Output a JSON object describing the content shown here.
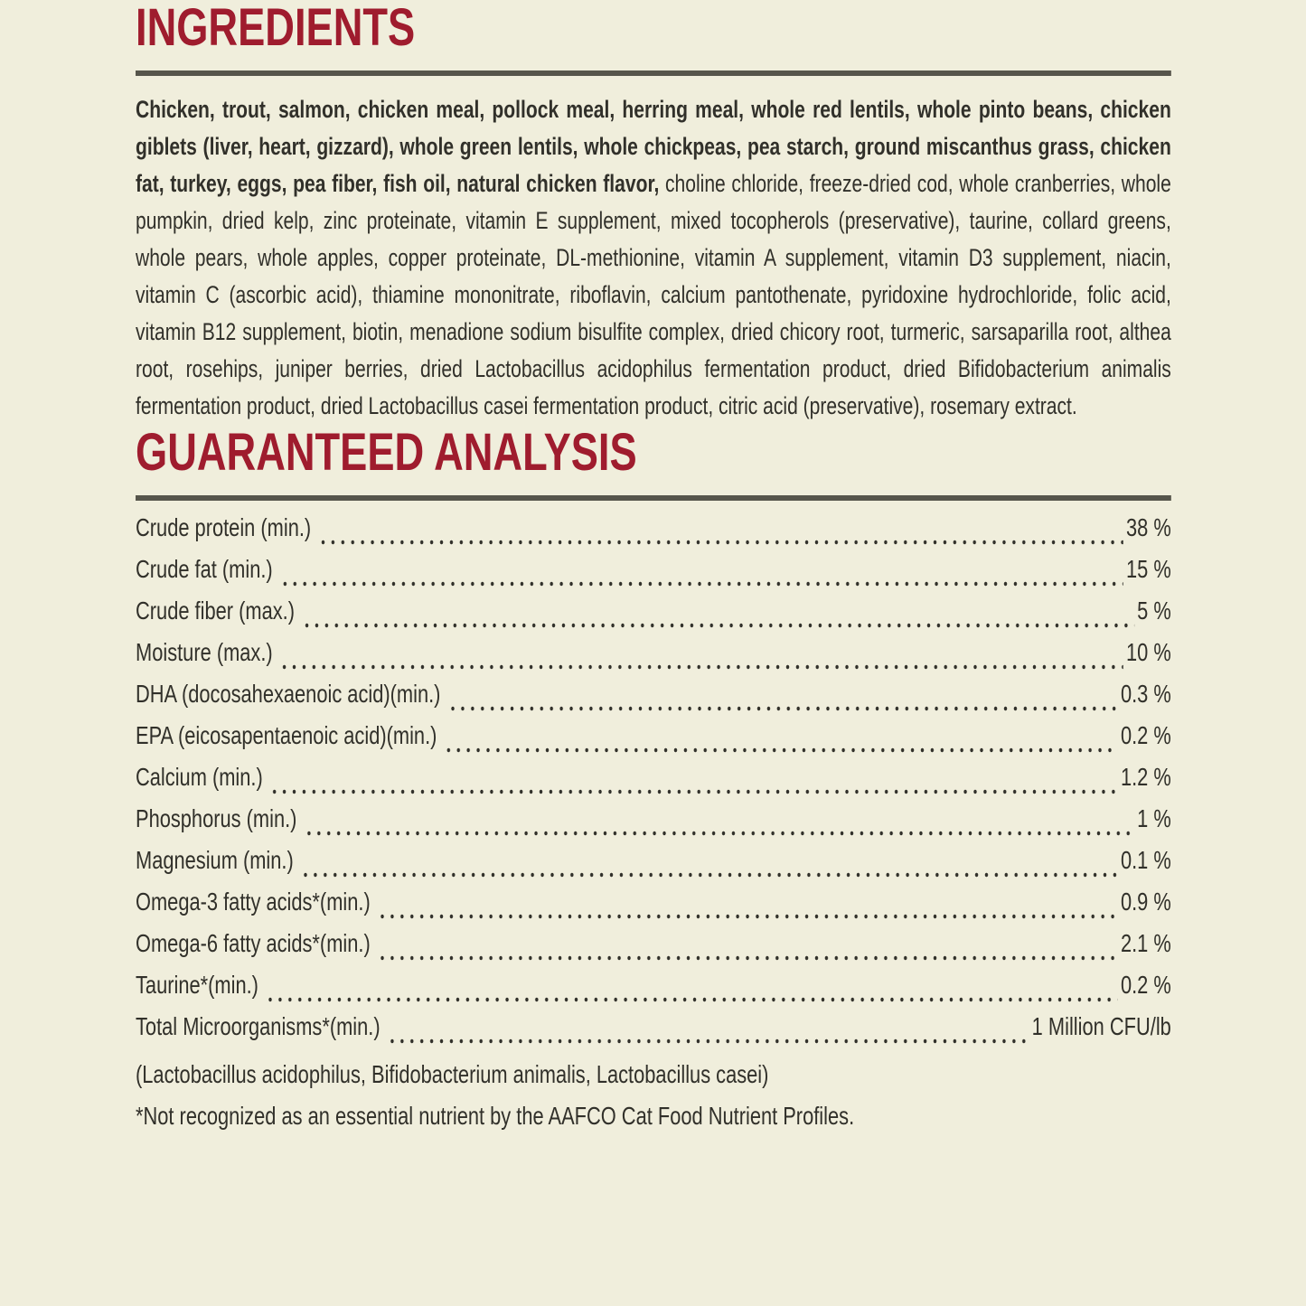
{
  "theme": {
    "background": "#f0eedc",
    "heading_color": "#9f1c2e",
    "rule_color": "#56554b",
    "text_color": "#31302a"
  },
  "ingredients": {
    "title": "INGREDIENTS",
    "bold_text": "Chicken, trout, salmon, chicken meal, pollock meal, herring meal, whole red lentils, whole pinto beans, chicken giblets (liver, heart, gizzard), whole green lentils, whole chickpeas, pea starch, ground miscanthus grass, chicken fat, turkey, eggs, pea fiber, fish oil, natural chicken flavor,",
    "regular_text": " choline chloride, freeze-dried cod, whole cranberries, whole pumpkin, dried kelp, zinc proteinate, vitamin E supplement, mixed tocopherols (preservative), taurine, collard greens, whole pears, whole apples, copper proteinate, DL-methionine, vitamin A supplement, vitamin D3 supplement, niacin, vitamin C (ascorbic acid), thiamine mononitrate, riboflavin, calcium pantothenate, pyridoxine hydrochloride, folic acid, vitamin B12 supplement, biotin, menadione sodium bisulfite complex, dried chicory root, turmeric, sarsaparilla root, althea root, rosehips, juniper berries, dried Lactobacillus acidophilus fermentation product, dried Bifidobacterium animalis fermentation product, dried Lactobacillus casei fermentation product, citric acid (preservative), rosemary extract."
  },
  "analysis": {
    "title": "GUARANTEED ANALYSIS",
    "rows": [
      {
        "label": "Crude protein (min.)",
        "value": "38 %"
      },
      {
        "label": "Crude fat (min.)",
        "value": "15 %"
      },
      {
        "label": "Crude fiber (max.)",
        "value": "5 %"
      },
      {
        "label": "Moisture (max.)",
        "value": "10 %"
      },
      {
        "label": "DHA (docosahexaenoic acid)(min.)",
        "value": "0.3 %"
      },
      {
        "label": "EPA (eicosapentaenoic acid)(min.)",
        "value": "0.2 %"
      },
      {
        "label": "Calcium (min.)",
        "value": "1.2 %"
      },
      {
        "label": "Phosphorus (min.)",
        "value": "1 %"
      },
      {
        "label": "Magnesium (min.)",
        "value": "0.1 %"
      },
      {
        "label": "Omega-3 fatty acids*(min.)",
        "value": "0.9 %"
      },
      {
        "label": "Omega-6 fatty acids*(min.)",
        "value": "2.1 %"
      },
      {
        "label": "Taurine*(min.)",
        "value": "0.2 %"
      },
      {
        "label": "Total Microorganisms*(min.)",
        "value": "1 Million CFU/lb"
      }
    ],
    "note_line": "(Lactobacillus acidophilus, Bifidobacterium animalis, Lactobacillus casei)",
    "footnote": "*Not recognized as an essential nutrient by the AAFCO Cat Food Nutrient Profiles."
  }
}
